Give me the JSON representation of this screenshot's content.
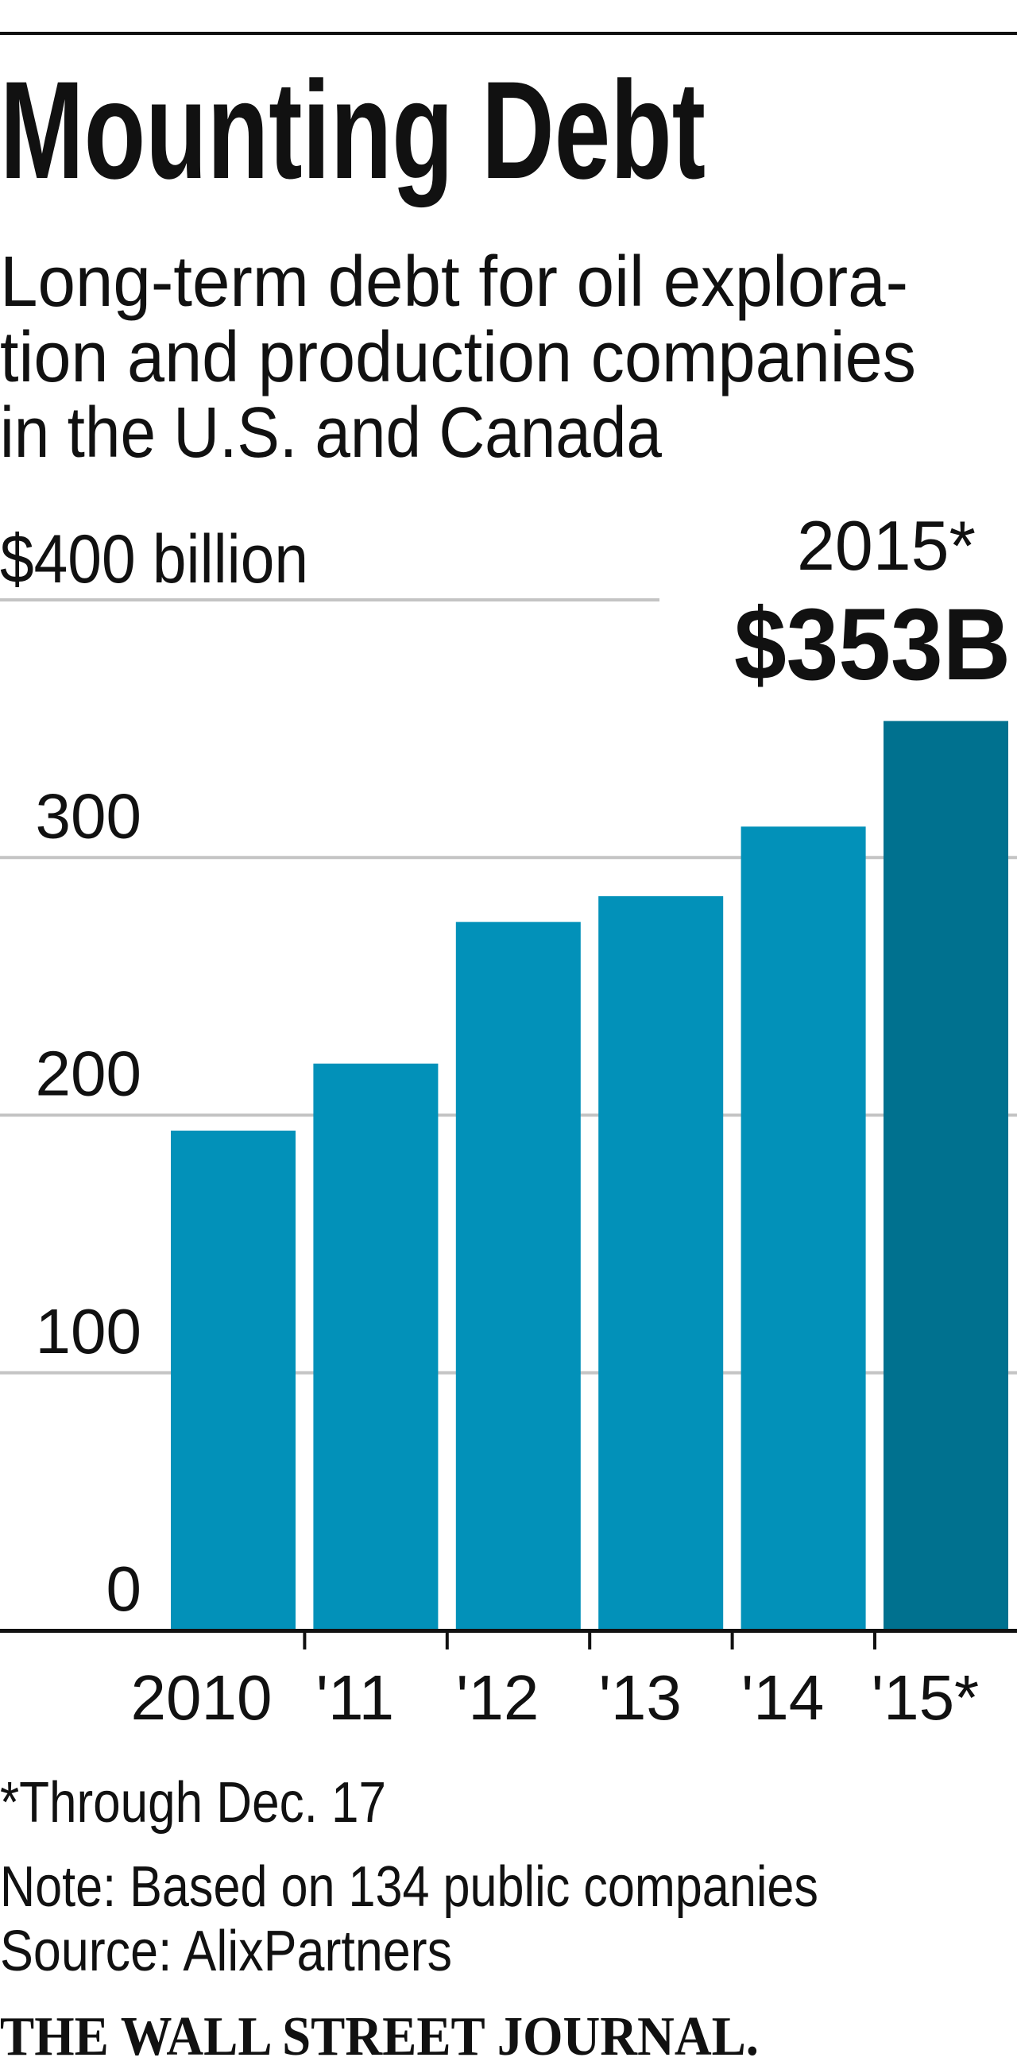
{
  "title": "Mounting Debt",
  "subtitle_lines": [
    "Long-term debt for oil explora-",
    "tion and production companies",
    "in the U.S. and Canada"
  ],
  "footnote": "*Through Dec. 17",
  "note": "Note: Based on 134 public companies",
  "source": "Source: AlixPartners",
  "branding": "THE WALL STREET JOURNAL.",
  "chart_data": {
    "type": "bar",
    "title": "Mounting Debt",
    "ylabel": "$400 billion",
    "xlabel": "",
    "categories": [
      "2010",
      "'11",
      "'12",
      "'13",
      "'14",
      "'15*"
    ],
    "values": [
      194,
      220,
      275,
      285,
      312,
      353
    ],
    "ylim": [
      0,
      400
    ],
    "yticks": [
      0,
      100,
      200,
      300,
      400
    ],
    "ytick_labels": [
      "0",
      "100",
      "200",
      "300",
      "$400 billion"
    ],
    "grid": true,
    "colors": {
      "bar": "#0291b9",
      "highlight": "#00718f",
      "grid": "#c4c4c4",
      "axis": "#111111"
    },
    "highlight_index": 5,
    "annotation": {
      "label": "2015*",
      "value": "$353B"
    }
  }
}
